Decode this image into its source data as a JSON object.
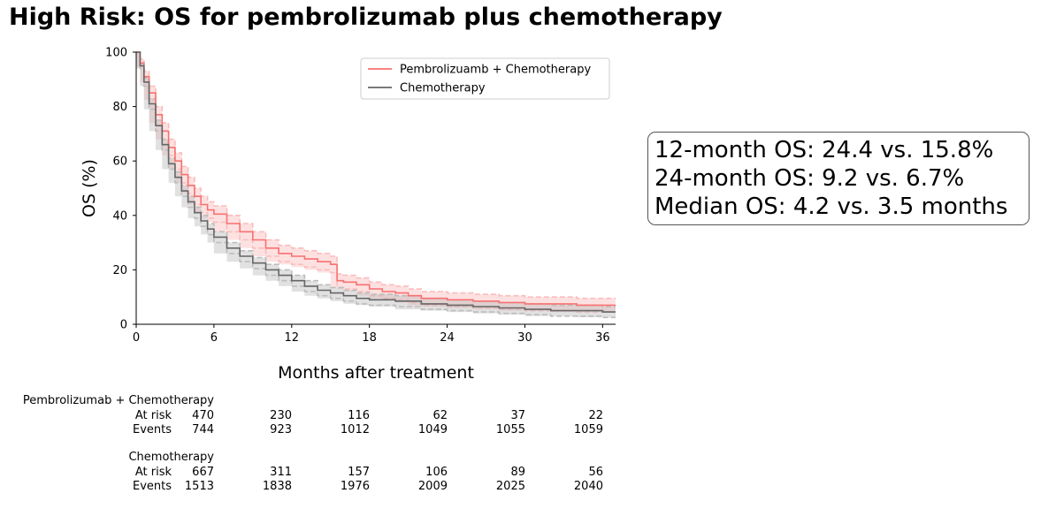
{
  "title": "High Risk: OS for pembrolizumab plus chemotherapy",
  "stats": [
    "12-month OS: 24.4 vs. 15.8%",
    "24-month OS: 9.2 vs. 6.7%",
    "Median OS: 4.2 vs. 3.5 months"
  ],
  "chart_data": {
    "type": "line",
    "subtype": "kaplan-meier step curves with dashed confidence bands",
    "xlabel": "Months after treatment",
    "ylabel": "OS (%)",
    "xlim": [
      0,
      37
    ],
    "ylim": [
      0,
      100
    ],
    "xticks": [
      0,
      6,
      12,
      18,
      24,
      30,
      36
    ],
    "yticks": [
      0,
      20,
      40,
      60,
      80,
      100
    ],
    "legend_position": "top-right",
    "series": [
      {
        "name": "Pembrolizuamb + Chemotherapy",
        "color": "#f87171",
        "band_color": "#fbbcbc",
        "x": [
          0,
          0.3,
          0.6,
          1,
          1.5,
          2,
          2.5,
          3,
          3.5,
          4,
          4.5,
          5,
          5.5,
          6,
          7,
          8,
          9,
          10,
          11,
          12,
          13,
          14,
          15,
          15.5,
          16,
          17,
          18,
          19,
          20,
          21,
          22,
          24,
          26,
          28,
          30,
          32,
          34,
          37
        ],
        "y": [
          100,
          96,
          91,
          85,
          77,
          71,
          65,
          60,
          55,
          51,
          47,
          44,
          42,
          40.5,
          37,
          34,
          31,
          28,
          26,
          25,
          24,
          23,
          22,
          16,
          15.5,
          14.5,
          13,
          12,
          11.5,
          10.5,
          9.5,
          9,
          8.5,
          8,
          7.5,
          7.5,
          7,
          7
        ],
        "ci_upper": [
          100,
          97.5,
          93,
          87.5,
          80,
          74,
          68,
          63,
          58,
          54,
          50,
          47,
          45,
          43.5,
          40,
          37,
          34,
          31,
          29,
          28,
          27,
          26,
          25,
          18.5,
          18,
          17,
          15.5,
          14.5,
          14,
          13,
          12,
          11.5,
          11,
          10.5,
          10,
          10,
          9.5,
          9.5
        ],
        "ci_lower": [
          100,
          94.5,
          89,
          82.5,
          74,
          68,
          62,
          57,
          52,
          48,
          44,
          41,
          39,
          37.5,
          34,
          31,
          28,
          25,
          23,
          22,
          21,
          20,
          19,
          13.5,
          13,
          12,
          10.5,
          9.5,
          9,
          8,
          7,
          6.5,
          6,
          5.5,
          5,
          5,
          4.5,
          4.5
        ]
      },
      {
        "name": "Chemotherapy",
        "color": "#666666",
        "band_color": "#bdbdbd",
        "x": [
          0,
          0.3,
          0.6,
          1,
          1.5,
          2,
          2.5,
          3,
          3.5,
          4,
          4.5,
          5,
          5.5,
          6,
          7,
          8,
          9,
          10,
          11,
          12,
          13,
          14,
          15,
          16,
          17,
          18,
          20,
          22,
          24,
          26,
          28,
          30,
          32,
          34,
          36,
          37
        ],
        "y": [
          100,
          95,
          89,
          81,
          73,
          66,
          59,
          54,
          49,
          45,
          41,
          38,
          35,
          32,
          28,
          25,
          22.5,
          20,
          18,
          16,
          14,
          12.5,
          11.5,
          10.5,
          9.5,
          9,
          8.5,
          7.5,
          7,
          6.5,
          6,
          5.5,
          5,
          5,
          4.5,
          4.5
        ],
        "ci_upper": [
          100,
          96,
          90.5,
          83,
          75,
          68,
          61,
          56,
          51,
          47,
          43,
          40,
          37,
          34,
          30,
          27,
          24.5,
          22,
          20,
          18,
          16,
          14.5,
          13.5,
          12.5,
          11.5,
          11,
          10.5,
          9.5,
          9,
          8.5,
          8,
          7.5,
          7,
          7,
          6.5,
          6.5
        ],
        "ci_lower": [
          100,
          94,
          87.5,
          79,
          71,
          64,
          57,
          52,
          47,
          43,
          39,
          36,
          33,
          30,
          26,
          23,
          20.5,
          18,
          16,
          14,
          12,
          10.5,
          9.5,
          8.5,
          7.5,
          7,
          6.5,
          5.5,
          5,
          4.5,
          4,
          3.5,
          3,
          3,
          2.5,
          2.5
        ]
      }
    ]
  },
  "risk_table": {
    "groups": [
      {
        "name": "Pembrolizumab + Chemotherapy",
        "at_risk_label": "At risk",
        "events_label": "Events",
        "at_risk": [
          "470",
          "230",
          "116",
          "62",
          "37",
          "22"
        ],
        "events": [
          "744",
          "923",
          "1012",
          "1049",
          "1055",
          "1059"
        ]
      },
      {
        "name": "Chemotherapy",
        "at_risk_label": "At risk",
        "events_label": "Events",
        "at_risk": [
          "667",
          "311",
          "157",
          "106",
          "89",
          "56"
        ],
        "events": [
          "1513",
          "1838",
          "1976",
          "2009",
          "2025",
          "2040"
        ]
      }
    ]
  }
}
